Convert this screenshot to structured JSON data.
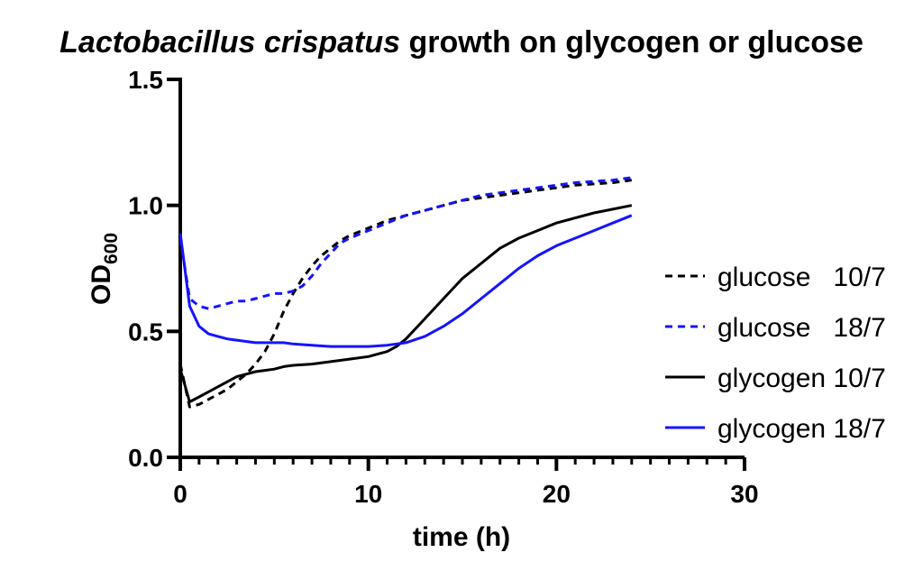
{
  "chart_data": {
    "type": "line",
    "title_italic": "Lactobacillus crispatus",
    "title_rest": " growth on glycogen or glucose",
    "xlabel": "time (h)",
    "ylabel_main": "OD",
    "ylabel_sub": "600",
    "xlim": [
      0,
      30
    ],
    "ylim": [
      0,
      1.5
    ],
    "x_ticks": [
      0,
      10,
      20,
      30
    ],
    "x_tick_labels": [
      "0",
      "10",
      "20",
      "30"
    ],
    "y_ticks": [
      0,
      0.5,
      1.0,
      1.5
    ],
    "y_tick_labels": [
      "0.0",
      "0.5",
      "1.0",
      "1.5"
    ],
    "x_minor_step": 1,
    "grid": false,
    "legend_position": "right",
    "series": [
      {
        "name": "glucose   10/7",
        "color": "#000000",
        "dash": true,
        "x": [
          0,
          0.5,
          1,
          1.5,
          2,
          2.5,
          3,
          3.5,
          4,
          4.5,
          5,
          5.5,
          6,
          6.5,
          7,
          7.5,
          8,
          8.5,
          9,
          10,
          11,
          12,
          13,
          14,
          15,
          16,
          17,
          18,
          19,
          20,
          21,
          22,
          23,
          24
        ],
        "y": [
          0.37,
          0.2,
          0.21,
          0.23,
          0.25,
          0.27,
          0.3,
          0.33,
          0.37,
          0.42,
          0.49,
          0.58,
          0.65,
          0.71,
          0.76,
          0.8,
          0.83,
          0.86,
          0.88,
          0.91,
          0.94,
          0.96,
          0.98,
          1.0,
          1.02,
          1.03,
          1.04,
          1.05,
          1.06,
          1.07,
          1.08,
          1.085,
          1.09,
          1.1
        ]
      },
      {
        "name": "glucose   18/7",
        "color": "#1414ff",
        "dash": true,
        "x": [
          0,
          0.5,
          1,
          1.5,
          2,
          2.5,
          3,
          3.5,
          4,
          4.5,
          5,
          5.5,
          6,
          6.5,
          7,
          7.5,
          8,
          8.5,
          9,
          10,
          11,
          12,
          13,
          14,
          15,
          16,
          17,
          18,
          19,
          20,
          21,
          22,
          23,
          24
        ],
        "y": [
          0.87,
          0.63,
          0.6,
          0.59,
          0.6,
          0.61,
          0.62,
          0.62,
          0.63,
          0.64,
          0.65,
          0.65,
          0.66,
          0.68,
          0.72,
          0.77,
          0.81,
          0.85,
          0.87,
          0.9,
          0.93,
          0.96,
          0.98,
          1.0,
          1.02,
          1.04,
          1.05,
          1.06,
          1.07,
          1.08,
          1.09,
          1.095,
          1.1,
          1.11
        ]
      },
      {
        "name": "glycogen 10/7",
        "color": "#000000",
        "dash": false,
        "x": [
          0,
          0.5,
          1,
          1.5,
          2,
          2.5,
          3,
          3.5,
          4,
          4.5,
          5,
          5.5,
          6,
          7,
          8,
          9,
          10,
          11,
          11.5,
          12,
          13,
          14,
          15,
          16,
          17,
          18,
          19,
          20,
          21,
          22,
          23,
          24
        ],
        "y": [
          0.35,
          0.22,
          0.24,
          0.26,
          0.28,
          0.3,
          0.32,
          0.33,
          0.34,
          0.345,
          0.35,
          0.36,
          0.365,
          0.37,
          0.38,
          0.39,
          0.4,
          0.42,
          0.44,
          0.47,
          0.55,
          0.63,
          0.71,
          0.77,
          0.83,
          0.87,
          0.9,
          0.93,
          0.95,
          0.97,
          0.985,
          1.0
        ]
      },
      {
        "name": "glycogen 18/7",
        "color": "#1414ff",
        "dash": false,
        "x": [
          0,
          0.5,
          1,
          1.5,
          2,
          2.5,
          3,
          3.5,
          4,
          4.5,
          5,
          5.5,
          6,
          7,
          8,
          9,
          10,
          11,
          12,
          13,
          14,
          15,
          16,
          17,
          18,
          19,
          20,
          21,
          22,
          23,
          24
        ],
        "y": [
          0.89,
          0.6,
          0.52,
          0.49,
          0.48,
          0.47,
          0.465,
          0.46,
          0.455,
          0.455,
          0.455,
          0.455,
          0.45,
          0.445,
          0.44,
          0.44,
          0.44,
          0.445,
          0.455,
          0.48,
          0.52,
          0.57,
          0.63,
          0.69,
          0.75,
          0.8,
          0.84,
          0.87,
          0.9,
          0.93,
          0.96
        ]
      }
    ]
  }
}
